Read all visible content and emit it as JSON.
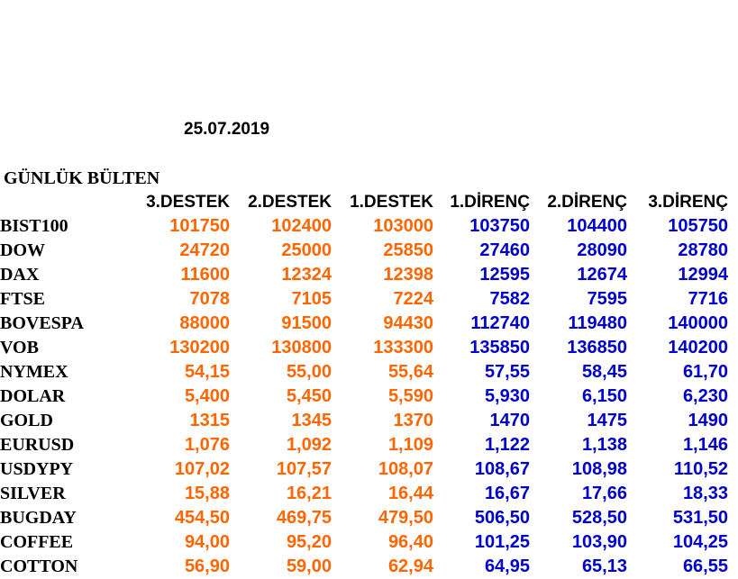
{
  "date": "25.07.2019",
  "title": "GÜNLÜK BÜLTEN",
  "columns": [
    "3.DESTEK",
    "2.DESTEK",
    "1.DESTEK",
    "1.DİRENÇ",
    "2.DİRENÇ",
    "3.DİRENÇ"
  ],
  "colors": {
    "support": "#ff6600",
    "resistance": "#0000cc"
  },
  "rows": [
    {
      "symbol": "BIST100",
      "values": [
        "101750",
        "102400",
        "103000",
        "103750",
        "104400",
        "105750"
      ]
    },
    {
      "symbol": "DOW",
      "values": [
        "24720",
        "25000",
        "25850",
        "27460",
        "28090",
        "28780"
      ]
    },
    {
      "symbol": "DAX",
      "values": [
        "11600",
        "12324",
        "12398",
        "12595",
        "12674",
        "12994"
      ]
    },
    {
      "symbol": "FTSE",
      "values": [
        "7078",
        "7105",
        "7224",
        "7582",
        "7595",
        "7716"
      ]
    },
    {
      "symbol": "BOVESPA",
      "values": [
        "88000",
        "91500",
        "94430",
        "112740",
        "119480",
        "140000"
      ]
    },
    {
      "symbol": "VOB",
      "values": [
        "130200",
        "130800",
        "133300",
        "135850",
        "136850",
        "140200"
      ]
    },
    {
      "symbol": "NYMEX",
      "values": [
        "54,15",
        "55,00",
        "55,64",
        "57,55",
        "58,45",
        "61,70"
      ]
    },
    {
      "symbol": "DOLAR",
      "values": [
        "5,400",
        "5,450",
        "5,590",
        "5,930",
        "6,150",
        "6,230"
      ]
    },
    {
      "symbol": "GOLD",
      "values": [
        "1315",
        "1345",
        "1370",
        "1470",
        "1475",
        "1490"
      ]
    },
    {
      "symbol": "EURUSD",
      "values": [
        "1,076",
        "1,092",
        "1,109",
        "1,122",
        "1,138",
        "1,146"
      ]
    },
    {
      "symbol": "USDYPY",
      "values": [
        "107,02",
        "107,57",
        "108,07",
        "108,67",
        "108,98",
        "110,52"
      ]
    },
    {
      "symbol": "SILVER",
      "values": [
        "15,88",
        "16,21",
        "16,44",
        "16,67",
        "17,66",
        "18,33"
      ]
    },
    {
      "symbol": "BUGDAY",
      "values": [
        "454,50",
        "469,75",
        "479,50",
        "506,50",
        "528,50",
        "531,50"
      ]
    },
    {
      "symbol": "COFFEE",
      "values": [
        "94,00",
        "95,20",
        "96,40",
        "101,25",
        "103,90",
        "104,25"
      ]
    },
    {
      "symbol": "COTTON",
      "values": [
        "56,90",
        "59,00",
        "62,94",
        "64,95",
        "65,13",
        "66,55"
      ]
    }
  ]
}
